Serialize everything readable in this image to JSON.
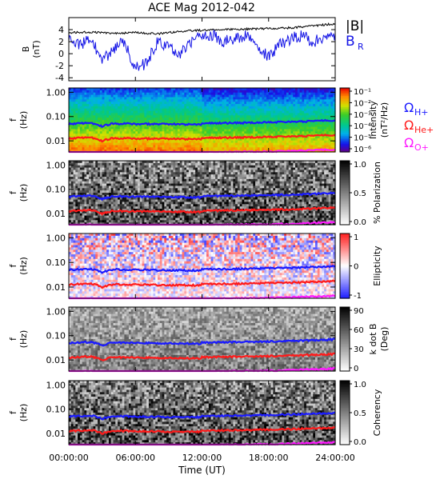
{
  "chart_data": {
    "title": "ACE Mag 2012-042",
    "type": "line",
    "x_axis": {
      "label": "Time (UT)",
      "ticks": [
        "00:00:00",
        "06:00:00",
        "12:00:00",
        "18:00:00",
        "24:00:00"
      ],
      "range_hours": [
        0,
        24
      ]
    },
    "top_panel": {
      "ylabel": "B\n(nT)",
      "ylim": [
        -4.5,
        6
      ],
      "yticks": [
        "4",
        "2",
        "0",
        "-2",
        "-4"
      ],
      "yticks_values": [
        4,
        2,
        0,
        -2,
        -4
      ],
      "series": [
        {
          "name": "|B|",
          "color": "#000000",
          "x": [
            0,
            2,
            4,
            6,
            8,
            10,
            12,
            14,
            16,
            18,
            20,
            22,
            24
          ],
          "y": [
            3.5,
            3.6,
            3.4,
            3.5,
            3.3,
            3.7,
            3.9,
            4.0,
            4.1,
            4.2,
            4.3,
            4.6,
            5.0
          ]
        },
        {
          "name": "B",
          "subscript": "R",
          "color": "#1414e6",
          "x": [
            0,
            1,
            2,
            3,
            4,
            5,
            6,
            7,
            8,
            9,
            10,
            11,
            12,
            13,
            14,
            15,
            16,
            17,
            18,
            19,
            20,
            21,
            22,
            23,
            24
          ],
          "y": [
            2.8,
            1.5,
            2.5,
            -1.0,
            0.5,
            2.2,
            -2.5,
            -1.5,
            2.0,
            1.0,
            0.0,
            2.0,
            3.0,
            3.0,
            2.0,
            2.5,
            3.0,
            1.0,
            -0.5,
            1.5,
            2.5,
            3.0,
            2.0,
            2.5,
            3.0
          ]
        }
      ]
    },
    "spectral_panels": [
      {
        "id": "intensity",
        "ylabel": "f\n(Hz)",
        "colorbar_label": "Intensity\n(nT²/Hz)",
        "colorbar_type": "rainbow",
        "colorbar_ticks": [
          "10⁻¹",
          "10⁻²",
          "10⁻³",
          "10⁻⁴",
          "10⁻⁵",
          "10⁻⁶"
        ]
      },
      {
        "id": "polarization",
        "ylabel": "f\n(Hz)",
        "colorbar_label": "% Polarization",
        "colorbar_type": "gray",
        "colorbar_ticks": [
          "1.0",
          "0.5",
          "0.0"
        ]
      },
      {
        "id": "ellipticity",
        "ylabel": "f\n(Hz)",
        "colorbar_label": "Ellipticity",
        "colorbar_type": "bwr",
        "colorbar_ticks": [
          "1",
          "0",
          "-1"
        ]
      },
      {
        "id": "kdotb",
        "ylabel": "f\n(Hz)",
        "colorbar_label": "k dot B\n(Deg)",
        "colorbar_type": "gray",
        "colorbar_ticks": [
          "90",
          "60",
          "30",
          "0"
        ]
      },
      {
        "id": "coherency",
        "ylabel": "f\n(Hz)",
        "colorbar_label": "Coherency",
        "colorbar_type": "gray",
        "colorbar_ticks": [
          "1.0",
          "0.5",
          "0.0"
        ]
      }
    ],
    "spectral_yticks": [
      "1.00",
      "0.10",
      "0.01"
    ],
    "spectral_yticks_values": [
      1.0,
      0.1,
      0.01
    ],
    "spectral_ylim": [
      0.0035,
      1.5
    ],
    "gyro_lines": [
      {
        "name": "Ω",
        "subscript": "H+",
        "color": "#1a1aff",
        "x": [
          0,
          2,
          3,
          4,
          6,
          8,
          10,
          11.9,
          12,
          14,
          16,
          18,
          20,
          22,
          24
        ],
        "y": [
          0.05,
          0.055,
          0.04,
          0.052,
          0.05,
          0.049,
          0.048,
          0.047,
          0.052,
          0.054,
          0.055,
          0.058,
          0.06,
          0.065,
          0.07
        ]
      },
      {
        "name": "Ω",
        "subscript": "He+",
        "color": "#ff1a1a",
        "x": [
          0,
          2,
          3,
          4,
          6,
          8,
          10,
          11.9,
          12,
          14,
          16,
          18,
          20,
          22,
          24
        ],
        "y": [
          0.0125,
          0.014,
          0.01,
          0.013,
          0.0125,
          0.0122,
          0.012,
          0.0118,
          0.013,
          0.0135,
          0.0138,
          0.0145,
          0.015,
          0.0162,
          0.0175
        ]
      },
      {
        "name": "Ω",
        "subscript": "O+",
        "color": "#ff1aff",
        "x": [
          0,
          2,
          3,
          4,
          6,
          8,
          10,
          11.9,
          12,
          14,
          16,
          18,
          20,
          22,
          24
        ],
        "y": [
          0.0031,
          0.0035,
          0.0025,
          0.0033,
          0.0031,
          0.003,
          0.003,
          0.0029,
          0.0033,
          0.0034,
          0.0035,
          0.0036,
          0.0038,
          0.0041,
          0.0044
        ]
      }
    ]
  }
}
